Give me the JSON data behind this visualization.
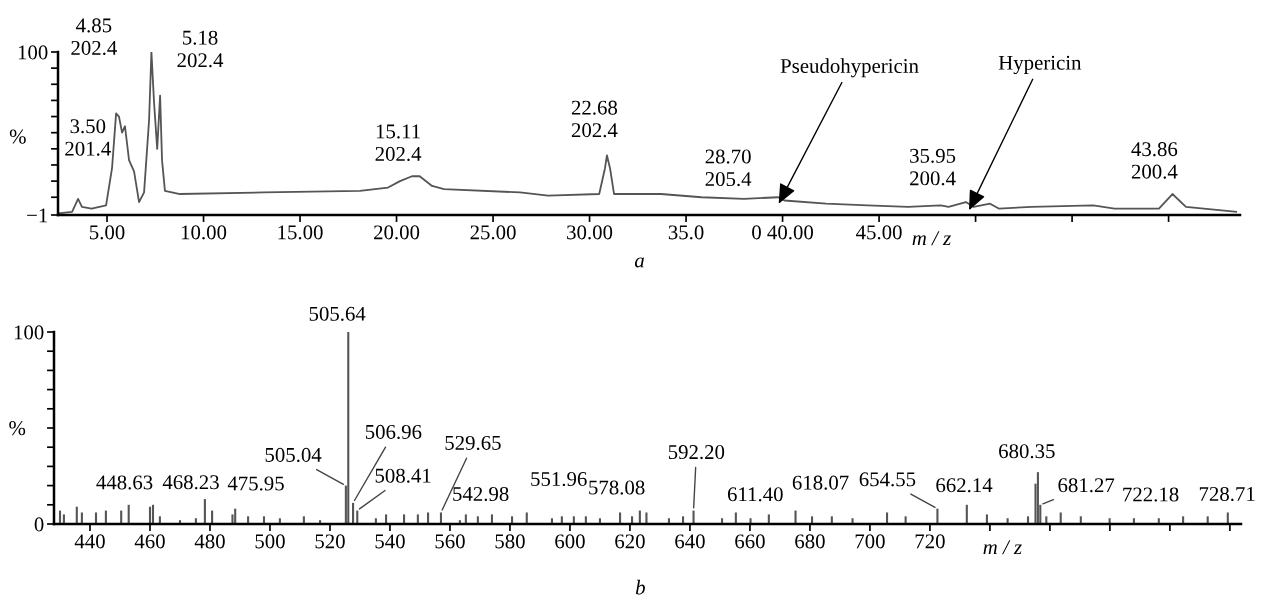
{
  "chart_data": [
    {
      "type": "line",
      "ylabel": "%",
      "xlabel": "m / z",
      "color": "#555555",
      "x": [
        2.46,
        3.19,
        3.5,
        3.7,
        4.2,
        4.95,
        5.26,
        5.47,
        5.62,
        5.78,
        5.93,
        6.14,
        6.4,
        6.66,
        6.92,
        7.18,
        7.3,
        7.44,
        7.6,
        7.75,
        7.85,
        8.0,
        8.78,
        13.1,
        18.1,
        19.56,
        20.18,
        20.8,
        21.2,
        21.84,
        22.46,
        26.4,
        27.85,
        30.5,
        30.8,
        30.9,
        31.06,
        31.27,
        31.8,
        33.7,
        35.8,
        38.0,
        39.77,
        40.1,
        42.25,
        44.4,
        46.5,
        48.2,
        48.6,
        49.5,
        49.9,
        50.75,
        51.2,
        52.9,
        56.1,
        57.2,
        59.5,
        60.2,
        60.9,
        63.5
      ],
      "values": [
        0,
        1,
        9,
        4,
        3,
        5,
        28,
        62,
        60,
        50,
        54,
        33,
        26,
        7,
        13,
        58,
        100,
        68,
        40,
        73,
        33,
        14,
        12,
        13,
        14,
        16,
        20,
        23,
        23,
        17,
        15,
        13,
        11,
        12,
        28,
        36,
        28,
        12,
        12,
        12,
        10,
        9,
        10,
        8,
        6,
        5,
        4,
        5,
        4,
        7,
        4,
        6,
        3,
        4,
        5,
        3,
        3,
        12,
        4,
        1
      ],
      "xlim": [
        2.46,
        63.7
      ],
      "ylim": [
        -1,
        100
      ],
      "xticks": [
        {
          "value": 5,
          "label": "5.00"
        },
        {
          "value": 10,
          "label": "10.00"
        },
        {
          "value": 15,
          "label": "15.00"
        },
        {
          "value": 20,
          "label": "20.00"
        },
        {
          "value": 25,
          "label": "25.00"
        },
        {
          "value": 30,
          "label": "30.00"
        },
        {
          "value": 35,
          "label": "35.0"
        },
        {
          "value": 40,
          "label": "0 40.00"
        },
        {
          "value": 45,
          "label": "45.00"
        },
        {
          "value": 50,
          "label": null
        },
        {
          "value": 55,
          "label": null
        },
        {
          "value": 60,
          "label": null
        }
      ],
      "yticks": [
        {
          "value": -1,
          "label": "−1"
        },
        {
          "value": 10,
          "label": null
        },
        {
          "value": 20,
          "label": null
        },
        {
          "value": 30,
          "label": null
        },
        {
          "value": 40,
          "label": null
        },
        {
          "value": 50,
          "label": null
        },
        {
          "value": 60,
          "label": null
        },
        {
          "value": 70,
          "label": null
        },
        {
          "value": 80,
          "label": null
        },
        {
          "value": 90,
          "label": null
        },
        100
      ],
      "annotations": [
        {
          "text": "3.50\n201.4",
          "x": 3.5,
          "y": 9
        },
        {
          "text": "4.85\n202.4",
          "x": 5.47,
          "y": 62
        },
        {
          "text": "5.18\n202.4",
          "x": 7.3,
          "y": 100
        },
        {
          "text": "15.11\n202.4",
          "x": 20.8,
          "y": 23
        },
        {
          "text": "22.68\n202.4",
          "x": 30.9,
          "y": 36
        },
        {
          "text": "28.70\n205.4",
          "x": 39.77,
          "y": 10
        },
        {
          "text": "Pseudohypericin",
          "x": 39.8,
          "y": 6
        },
        {
          "text": "35.95\n200.4",
          "x": 49.5,
          "y": 7
        },
        {
          "text": "Hypericin",
          "x": 49.66,
          "y": 2
        },
        {
          "text": "43.86\n200.4",
          "x": 60.2,
          "y": 12
        },
        "a"
      ]
    },
    {
      "type": "bar",
      "ylabel": "%",
      "xlabel": "m / z",
      "color": "#555555",
      "x": [
        430,
        431.3,
        435.6,
        437.3,
        442,
        445.3,
        450.4,
        452.9,
        460,
        461,
        463.3,
        470,
        475.3,
        478.3,
        480.7,
        487.5,
        488.4,
        492.7,
        498,
        503.3,
        511.3,
        516.7,
        525.3,
        526.1,
        527.7,
        529.1,
        535.3,
        538.7,
        544.7,
        549.3,
        552.7,
        557,
        563.3,
        565.3,
        569.3,
        574,
        580.7,
        585.6,
        594,
        597.3,
        601.3,
        605.3,
        610,
        616.7,
        620.7,
        623.3,
        625.5,
        633,
        637.7,
        641.2,
        650.7,
        655.3,
        660.2,
        666.3,
        675.2,
        680.7,
        687.3,
        694.2,
        705.7,
        711.9,
        722.5,
        732.3,
        739,
        745.9,
        752.7,
        755.2,
        756,
        756.8,
        758.8,
        763.6,
        770.3,
        779.9,
        788,
        796.3,
        804.4,
        812.6,
        819.3
      ],
      "values": [
        7,
        5,
        9,
        6,
        6,
        7,
        7,
        10,
        9,
        10,
        4,
        2,
        3,
        13,
        7,
        5,
        8,
        4,
        4,
        3,
        4,
        2,
        20,
        100,
        11,
        7,
        3,
        5,
        5,
        5,
        6,
        6,
        2,
        5,
        4,
        5,
        4,
        6,
        3,
        4,
        4,
        4,
        3,
        6,
        4,
        7,
        6,
        3,
        4,
        7,
        3,
        6,
        3,
        5,
        7,
        4,
        4,
        3,
        6,
        4,
        8,
        10,
        5,
        3,
        4,
        21,
        27,
        10,
        4,
        6,
        4,
        3,
        3,
        3,
        4,
        4,
        6
      ],
      "xlim": [
        428,
        823.7
      ],
      "ylim": [
        0,
        100
      ],
      "xticks": [
        440,
        460,
        480,
        500,
        520,
        540,
        560,
        580,
        600,
        620,
        640,
        660,
        680,
        700,
        720,
        {
          "value": 740,
          "label": null
        },
        {
          "value": 760,
          "label": null
        },
        {
          "value": 780,
          "label": null
        },
        {
          "value": 800,
          "label": null
        },
        {
          "value": 820,
          "label": null
        }
      ],
      "yticks": [
        0,
        {
          "value": 10,
          "label": null
        },
        {
          "value": 20,
          "label": null
        },
        {
          "value": 30,
          "label": null
        },
        {
          "value": 40,
          "label": null
        },
        {
          "value": 50,
          "label": null
        },
        {
          "value": 60,
          "label": null
        },
        {
          "value": 70,
          "label": null
        },
        {
          "value": 80,
          "label": null
        },
        {
          "value": 90,
          "label": null
        },
        100
      ],
      "annotations": [
        {
          "text": "448.63",
          "x": 452.9,
          "y": 10
        },
        {
          "text": "468.23",
          "x": 478.3,
          "y": 13
        },
        {
          "text": "475.95",
          "x": 488.4,
          "y": 8
        },
        {
          "text": "505.04",
          "x": 525.3,
          "y": 20
        },
        {
          "text": "505.64",
          "x": 526.1,
          "y": 100
        },
        {
          "text": "506.96",
          "x": 527.7,
          "y": 11
        },
        {
          "text": "508.41",
          "x": 529.1,
          "y": 7
        },
        {
          "text": "529.65",
          "x": 557,
          "y": 6
        },
        {
          "text": "542.98",
          "x": 569.3,
          "y": 4
        },
        {
          "text": "551.96",
          "x": 585.6,
          "y": 6
        },
        {
          "text": "578.08",
          "x": 610,
          "y": 3
        },
        {
          "text": "592.20",
          "x": 641.2,
          "y": 7
        },
        {
          "text": "611.40",
          "x": 655.3,
          "y": 6
        },
        {
          "text": "618.07",
          "x": 675.2,
          "y": 7
        },
        {
          "text": "654.55",
          "x": 722.5,
          "y": 8
        },
        {
          "text": "662.14",
          "x": 732.3,
          "y": 10
        },
        {
          "text": "680.35",
          "x": 756,
          "y": 27
        },
        {
          "text": "681.27",
          "x": 756.8,
          "y": 10
        },
        {
          "text": "722.18",
          "x": 788,
          "y": 3
        },
        {
          "text": "728.71",
          "x": 812.6,
          "y": 4
        },
        "b"
      ]
    }
  ]
}
